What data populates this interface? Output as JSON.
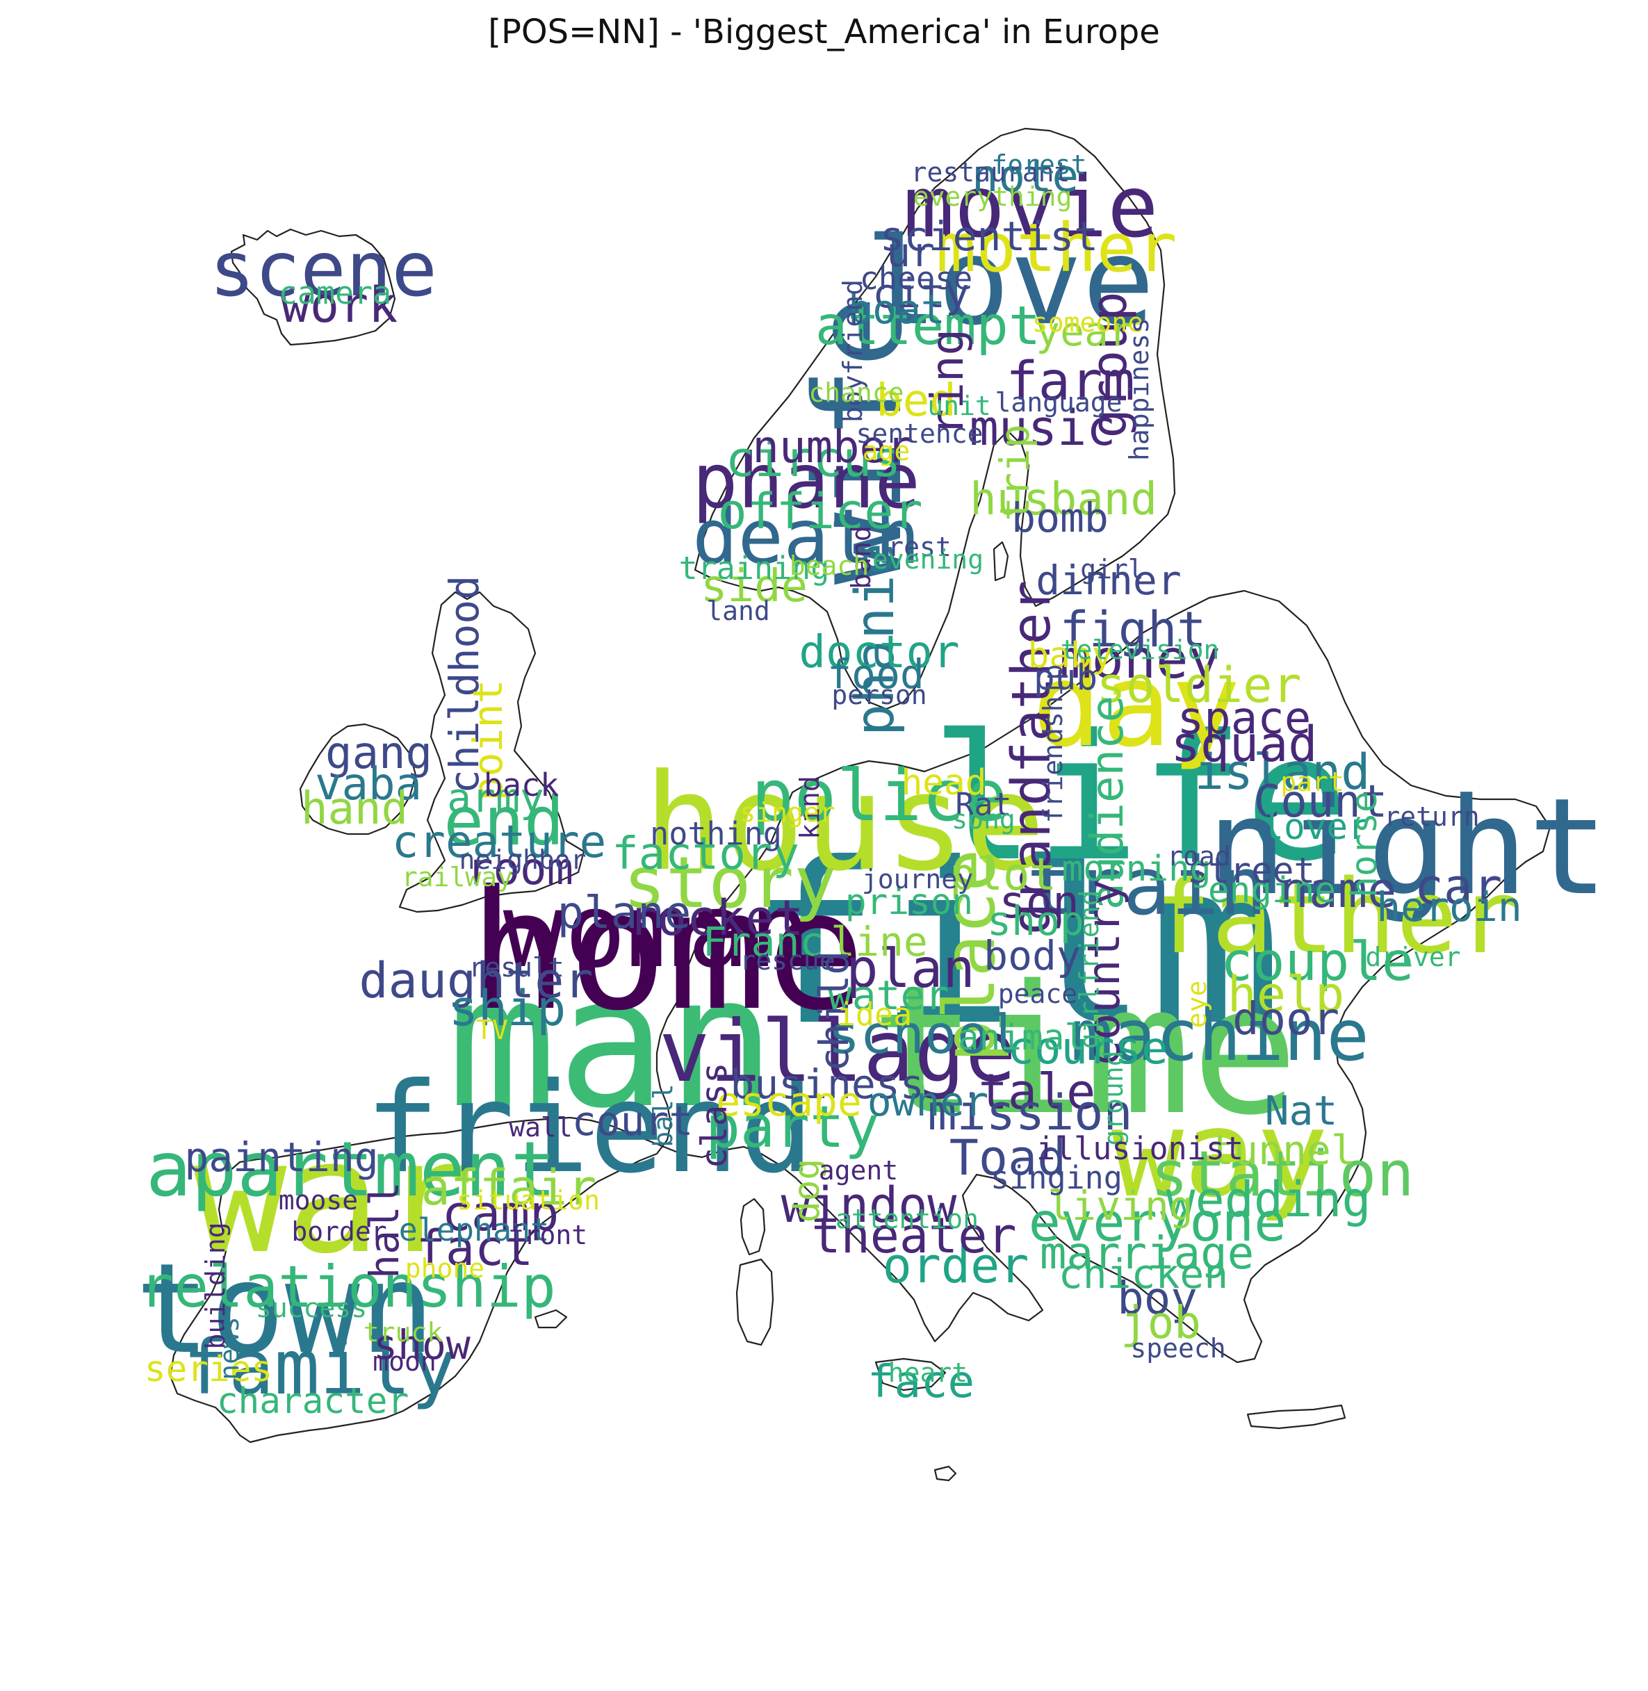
{
  "chart_data": {
    "type": "wordcloud",
    "title": "[POS=NN] - 'Biggest_America' in Europe",
    "mask_shape": "Europe map outline",
    "palette": "viridis",
    "words": [
      {
        "text": "film",
        "weight": 100
      },
      {
        "text": "man",
        "weight": 82
      },
      {
        "text": "time",
        "weight": 80
      },
      {
        "text": "life",
        "weight": 78
      },
      {
        "text": "home",
        "weight": 74
      },
      {
        "text": "war",
        "weight": 70
      },
      {
        "text": "house",
        "weight": 60
      },
      {
        "text": "night",
        "weight": 60
      },
      {
        "text": "town",
        "weight": 56
      },
      {
        "text": "friend",
        "weight": 56
      },
      {
        "text": "way",
        "weight": 54
      },
      {
        "text": "wife",
        "weight": 54
      },
      {
        "text": "love",
        "weight": 54
      },
      {
        "text": "day",
        "weight": 52
      },
      {
        "text": "woman",
        "weight": 46
      },
      {
        "text": "father",
        "weight": 46
      },
      {
        "text": "village",
        "weight": 38
      },
      {
        "text": "apartment",
        "weight": 34
      },
      {
        "text": "train",
        "weight": 36
      },
      {
        "text": "family",
        "weight": 34
      },
      {
        "text": "death",
        "weight": 34
      },
      {
        "text": "story",
        "weight": 32
      },
      {
        "text": "machine",
        "weight": 32
      },
      {
        "text": "police",
        "weight": 32
      },
      {
        "text": "phane",
        "weight": 34
      },
      {
        "text": "movie",
        "weight": 38
      },
      {
        "text": "scene",
        "weight": 34
      },
      {
        "text": "place",
        "weight": 32
      },
      {
        "text": "mother",
        "weight": 30
      },
      {
        "text": "end",
        "weight": 30
      },
      {
        "text": "station",
        "weight": 28
      },
      {
        "text": "party",
        "weight": 26
      },
      {
        "text": "relationship",
        "weight": 26
      },
      {
        "text": "money",
        "weight": 24
      },
      {
        "text": "everyone",
        "weight": 24
      },
      {
        "text": "phanie",
        "weight": 24
      },
      {
        "text": "grandfather",
        "weight": 24
      },
      {
        "text": "farm",
        "weight": 24
      },
      {
        "text": "attempt",
        "weight": 24
      },
      {
        "text": "plan",
        "weight": 24
      },
      {
        "text": "school",
        "weight": 24
      },
      {
        "text": "couple",
        "weight": 24
      },
      {
        "text": "rocket",
        "weight": 22
      },
      {
        "text": "daughter",
        "weight": 22
      },
      {
        "text": "ship",
        "weight": 22
      },
      {
        "text": "island",
        "weight": 22
      },
      {
        "text": "wedding",
        "weight": 22
      },
      {
        "text": "fact",
        "weight": 22
      },
      {
        "text": "camp",
        "weight": 22
      },
      {
        "text": "affair",
        "weight": 22
      },
      {
        "text": "help",
        "weight": 22
      },
      {
        "text": "soldier",
        "weight": 22
      },
      {
        "text": "fight",
        "weight": 22
      },
      {
        "text": "group",
        "weight": 22
      },
      {
        "text": "tale",
        "weight": 22
      },
      {
        "text": "mission",
        "weight": 22
      },
      {
        "text": "Toad",
        "weight": 22
      },
      {
        "text": "car",
        "weight": 22
      },
      {
        "text": "name",
        "weight": 22
      },
      {
        "text": "order",
        "weight": 22
      },
      {
        "text": "theater",
        "weight": 22
      },
      {
        "text": "window",
        "weight": 22
      },
      {
        "text": "officer",
        "weight": 22
      },
      {
        "text": "music",
        "weight": 22
      },
      {
        "text": "circus",
        "weight": 22
      },
      {
        "text": "work",
        "weight": 22
      },
      {
        "text": "squad",
        "weight": 22
      },
      {
        "text": "space",
        "weight": 20
      },
      {
        "text": "Count",
        "weight": 20
      },
      {
        "text": "audience",
        "weight": 20
      },
      {
        "text": "plot",
        "weight": 20
      },
      {
        "text": "son",
        "weight": 20
      },
      {
        "text": "country",
        "weight": 20
      },
      {
        "text": "door",
        "weight": 20
      },
      {
        "text": "course",
        "weight": 20
      },
      {
        "text": "doctor",
        "weight": 20
      },
      {
        "text": "food",
        "weight": 18
      },
      {
        "text": "dinner",
        "weight": 18
      },
      {
        "text": "marriage",
        "weight": 20
      },
      {
        "text": "boy",
        "weight": 20
      },
      {
        "text": "job",
        "weight": 20
      },
      {
        "text": "face",
        "weight": 20
      },
      {
        "text": "note",
        "weight": 20
      },
      {
        "text": "scientist",
        "weight": 18
      },
      {
        "text": "husband",
        "weight": 20
      },
      {
        "text": "bomb",
        "weight": 18
      },
      {
        "text": "bed",
        "weight": 20
      },
      {
        "text": "number",
        "weight": 20
      },
      {
        "text": "side",
        "weight": 20
      },
      {
        "text": "ring",
        "weight": 20
      },
      {
        "text": "trip",
        "weight": 18
      },
      {
        "text": "year",
        "weight": 18
      },
      {
        "text": "city",
        "weight": 18
      },
      {
        "text": "boat",
        "weight": 18
      },
      {
        "text": "ur",
        "weight": 18
      },
      {
        "text": "childhood",
        "weight": 18
      },
      {
        "text": "point",
        "weight": 18
      },
      {
        "text": "gang",
        "weight": 20
      },
      {
        "text": "vaba",
        "weight": 20
      },
      {
        "text": "hand",
        "weight": 20
      },
      {
        "text": "army",
        "weight": 18
      },
      {
        "text": "creature",
        "weight": 20
      },
      {
        "text": "room",
        "weight": 20
      },
      {
        "text": "factory",
        "weight": 20
      },
      {
        "text": "plane",
        "weight": 20
      },
      {
        "text": "line",
        "weight": 18
      },
      {
        "text": "water",
        "weight": 18
      },
      {
        "text": "shop",
        "weight": 18
      },
      {
        "text": "body",
        "weight": 18
      },
      {
        "text": "Franc",
        "weight": 18
      },
      {
        "text": "child",
        "weight": 18
      },
      {
        "text": "business",
        "weight": 18
      },
      {
        "text": "escape",
        "weight": 18
      },
      {
        "text": "owner",
        "weight": 18
      },
      {
        "text": "court",
        "weight": 18
      },
      {
        "text": "painting",
        "weight": 18
      },
      {
        "text": "hall",
        "weight": 18
      },
      {
        "text": "show",
        "weight": 18
      },
      {
        "text": "series",
        "weight": 16
      },
      {
        "text": "character",
        "weight": 16
      },
      {
        "text": "chicken",
        "weight": 18
      },
      {
        "text": "living",
        "weight": 18
      },
      {
        "text": "tunnel",
        "weight": 18
      },
      {
        "text": "Nat",
        "weight": 18
      },
      {
        "text": "heroin",
        "weight": 18
      },
      {
        "text": "engine",
        "weight": 16
      },
      {
        "text": "street",
        "weight": 16
      },
      {
        "text": "morning",
        "weight": 16
      },
      {
        "text": "lover",
        "weight": 16
      },
      {
        "text": "horse",
        "weight": 16
      },
      {
        "text": "head",
        "weight": 16
      },
      {
        "text": "prison",
        "weight": 16
      },
      {
        "text": "animal",
        "weight": 16
      },
      {
        "text": "baby",
        "weight": 16
      },
      {
        "text": "pub",
        "weight": 16
      },
      {
        "text": "dog",
        "weight": 16
      },
      {
        "text": "class",
        "weight": 16
      },
      {
        "text": "camera",
        "weight": 14
      },
      {
        "text": "cheese",
        "weight": 14
      },
      {
        "text": "boyfriend",
        "weight": 12
      },
      {
        "text": "chance",
        "weight": 12
      },
      {
        "text": "unit",
        "weight": 12
      },
      {
        "text": "language",
        "weight": 12
      },
      {
        "text": "sentence",
        "weight": 12
      },
      {
        "text": "age",
        "weight": 12
      },
      {
        "text": "restaurant",
        "weight": 12
      },
      {
        "text": "band",
        "weight": 12
      },
      {
        "text": "rest",
        "weight": 12
      },
      {
        "text": "evening",
        "weight": 12
      },
      {
        "text": "training",
        "weight": 14
      },
      {
        "text": "beach",
        "weight": 12
      },
      {
        "text": "land",
        "weight": 12
      },
      {
        "text": "girl",
        "weight": 12
      },
      {
        "text": "television",
        "weight": 12
      },
      {
        "text": "person",
        "weight": 12
      },
      {
        "text": "friendship",
        "weight": 12
      },
      {
        "text": "kind",
        "weight": 12
      },
      {
        "text": "singer",
        "weight": 12
      },
      {
        "text": "Rat",
        "weight": 14
      },
      {
        "text": "song",
        "weight": 12
      },
      {
        "text": "nothing",
        "weight": 14
      },
      {
        "text": "neighbor",
        "weight": 12
      },
      {
        "text": "railway",
        "weight": 12
      },
      {
        "text": "back",
        "weight": 14
      },
      {
        "text": "journey",
        "weight": 12
      },
      {
        "text": "road",
        "weight": 12
      },
      {
        "text": "part",
        "weight": 12
      },
      {
        "text": "return",
        "weight": 12
      },
      {
        "text": "driver",
        "weight": 12
      },
      {
        "text": "rescue",
        "weight": 12
      },
      {
        "text": "idea",
        "weight": 14
      },
      {
        "text": "peace",
        "weight": 12
      },
      {
        "text": "girlfriend",
        "weight": 12
      },
      {
        "text": "eye",
        "weight": 12
      },
      {
        "text": "ground",
        "weight": 12
      },
      {
        "text": "illusionist",
        "weight": 14
      },
      {
        "text": "singing",
        "weight": 14
      },
      {
        "text": "agent",
        "weight": 12
      },
      {
        "text": "attention",
        "weight": 12
      },
      {
        "text": "result",
        "weight": 12
      },
      {
        "text": "TV",
        "weight": 12
      },
      {
        "text": "ball",
        "weight": 12
      },
      {
        "text": "wall",
        "weight": 12
      },
      {
        "text": "moose",
        "weight": 12
      },
      {
        "text": "situation",
        "weight": 12
      },
      {
        "text": "border",
        "weight": 12
      },
      {
        "text": "elephant",
        "weight": 14
      },
      {
        "text": "front",
        "weight": 12
      },
      {
        "text": "phone",
        "weight": 12
      },
      {
        "text": "building",
        "weight": 12
      },
      {
        "text": "success",
        "weight": 12
      },
      {
        "text": "truck",
        "weight": 12
      },
      {
        "text": "news",
        "weight": 12
      },
      {
        "text": "moon",
        "weight": 12
      },
      {
        "text": "heart",
        "weight": 12
      },
      {
        "text": "speech",
        "weight": 12
      },
      {
        "text": "forest",
        "weight": 12
      },
      {
        "text": "everything",
        "weight": 12
      },
      {
        "text": "someone",
        "weight": 12
      },
      {
        "text": "happiness",
        "weight": 12
      }
    ]
  }
}
